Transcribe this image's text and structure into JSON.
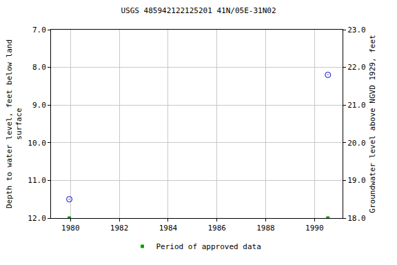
{
  "chart_data": {
    "type": "scatter",
    "title": "USGS 485942122125201 41N/05E-31N02",
    "x_label": null,
    "y_label": "Depth to water level, feet below land\nsurface",
    "y2_label": "Groundwater level above NGVD 1929, feet",
    "xlim": [
      1979.2,
      1991.15
    ],
    "xticks": [
      1980,
      1982,
      1984,
      1986,
      1988,
      1990
    ],
    "ylim": [
      12,
      7
    ],
    "yticks": [
      {
        "value": 7,
        "label": "7.0"
      },
      {
        "value": 8,
        "label": "8.0"
      },
      {
        "value": 9,
        "label": "9.0"
      },
      {
        "value": 10,
        "label": "10.0"
      },
      {
        "value": 11,
        "label": "11.0"
      },
      {
        "value": 12,
        "label": "12.0"
      }
    ],
    "y2lim": [
      18,
      23
    ],
    "y2ticks": [
      {
        "value": 18,
        "label": "18.0"
      },
      {
        "value": 19,
        "label": "19.0"
      },
      {
        "value": 20,
        "label": "20.0"
      },
      {
        "value": 21,
        "label": "21.0"
      },
      {
        "value": 22,
        "label": "22.0"
      },
      {
        "value": 23,
        "label": "23.0"
      }
    ],
    "grid": true,
    "legend": "bottom",
    "series": [
      {
        "x": [
          1979.95,
          1990.55
        ],
        "values": [
          11.5,
          8.2
        ],
        "color": "#0000cc",
        "marker": "circle-open-dot"
      },
      {
        "name": "Period of approved data",
        "x": [
          1979.95,
          1990.55
        ],
        "values": [
          18,
          18
        ],
        "color": "#00a000",
        "marker": "square",
        "axis": "y2"
      }
    ]
  }
}
